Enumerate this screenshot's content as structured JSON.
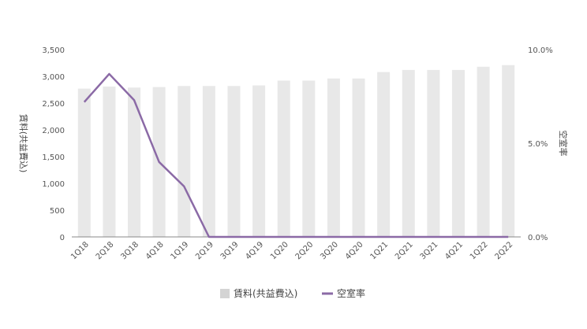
{
  "chart_data": {
    "type": "bar",
    "categories": [
      "1Q18",
      "2Q18",
      "3Q18",
      "4Q18",
      "1Q19",
      "2Q19",
      "3Q19",
      "4Q19",
      "1Q20",
      "2Q20",
      "3Q20",
      "4Q20",
      "1Q21",
      "2Q21",
      "3Q21",
      "4Q21",
      "1Q22",
      "2Q22"
    ],
    "series": [
      {
        "name": "賃料(共益費込)",
        "type": "bar",
        "axis": "left",
        "color": "#e8e8e8",
        "values": [
          2770,
          2810,
          2790,
          2800,
          2820,
          2820,
          2820,
          2830,
          2920,
          2920,
          2960,
          2960,
          3080,
          3120,
          3120,
          3120,
          3180,
          3210
        ]
      },
      {
        "name": "空室率",
        "type": "line",
        "axis": "right",
        "color": "#8b6aa6",
        "values": [
          7.2,
          8.7,
          7.3,
          4.0,
          2.7,
          0.0,
          0.0,
          0.0,
          0.0,
          0.0,
          0.0,
          0.0,
          0.0,
          0.0,
          0.0,
          0.0,
          0.0,
          0.0
        ]
      }
    ],
    "ylabel": "賃料(共益費込)",
    "y2label": "空室率",
    "ylim": [
      0,
      3500
    ],
    "y2lim": [
      0,
      10
    ],
    "yticks": [
      "0",
      "500",
      "1,000",
      "1,500",
      "2,000",
      "2,500",
      "3,000",
      "3,500"
    ],
    "y2ticks": [
      "0.0%",
      "5.0%",
      "10.0%"
    ],
    "legend": "bottom",
    "grid": false
  }
}
